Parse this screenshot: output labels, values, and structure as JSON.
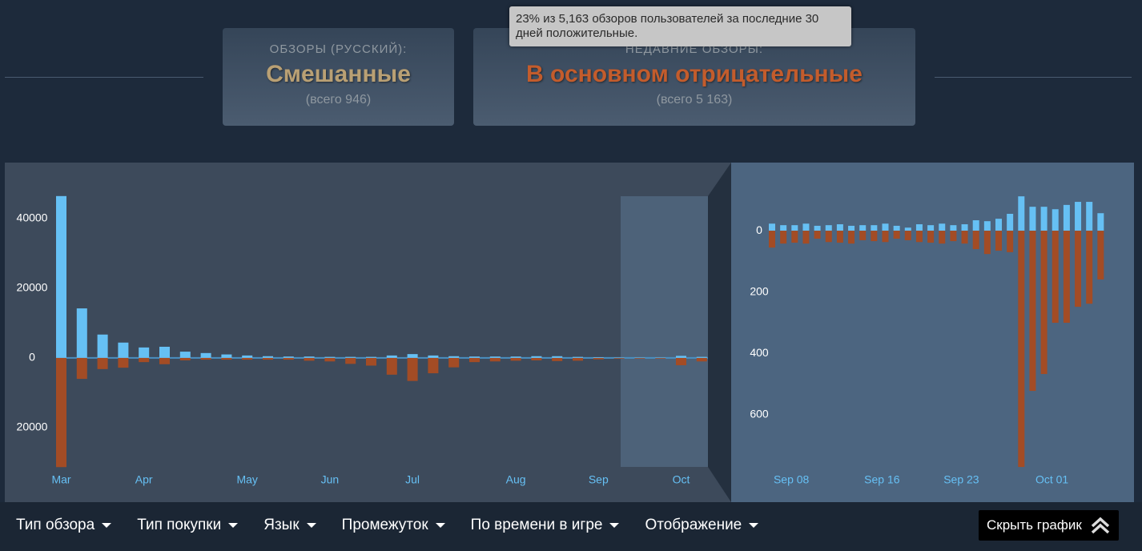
{
  "summary": {
    "overall": {
      "label": "ОБЗОРЫ (РУССКИЙ):",
      "rating": "Смешанные",
      "count": "(всего 946)"
    },
    "recent": {
      "label": "НЕДАВНИЕ ОБЗОРЫ:",
      "rating": "В основном отрицательные",
      "count": "(всего 5 163)"
    }
  },
  "tooltip": "23% из 5,163 обзоров пользователей за последние 30 дней положительные.",
  "chart_data": [
    {
      "type": "bar",
      "categories": [
        "Mar",
        null,
        null,
        null,
        "Apr",
        null,
        null,
        null,
        null,
        "May",
        null,
        null,
        null,
        "Jun",
        null,
        null,
        null,
        "Jul",
        null,
        null,
        null,
        null,
        "Aug",
        null,
        null,
        null,
        "Sep",
        null,
        null,
        null,
        "Oct",
        null
      ],
      "series": [
        {
          "color": "#66c0f4",
          "values": [
            46400,
            14200,
            6700,
            4400,
            3000,
            3200,
            1800,
            1400,
            1000,
            700,
            500,
            400,
            400,
            300,
            300,
            300,
            700,
            1100,
            700,
            500,
            400,
            400,
            400,
            500,
            500,
            300,
            200,
            100,
            100,
            100,
            600,
            300
          ]
        },
        {
          "color": "#a34c25",
          "values": [
            -31300,
            -6000,
            -3200,
            -2800,
            -1200,
            -1800,
            -700,
            -500,
            -500,
            -500,
            -500,
            -500,
            -800,
            -1000,
            -1700,
            -2200,
            -4800,
            -6600,
            -4400,
            -2700,
            -1200,
            -1000,
            -800,
            -700,
            -900,
            -800,
            -400,
            -200,
            -200,
            -200,
            -2100,
            -1000
          ]
        }
      ],
      "ylim": [
        -31700,
        56000
      ],
      "yticks": [
        40000,
        20000,
        0,
        {
          "value": -20000,
          "label": "20000"
        }
      ]
    },
    {
      "type": "bar",
      "categories": [
        null,
        "Sep 08",
        null,
        null,
        null,
        null,
        null,
        null,
        null,
        "Sep 16",
        null,
        null,
        null,
        null,
        null,
        null,
        "Sep 23",
        null,
        null,
        null,
        null,
        null,
        null,
        null,
        "Oct 01",
        null,
        null,
        null,
        null,
        null
      ],
      "series": [
        {
          "color": "#66c0f4",
          "values": [
            23,
            18,
            18,
            23,
            16,
            18,
            21,
            16,
            18,
            18,
            23,
            16,
            10,
            21,
            18,
            23,
            18,
            21,
            34,
            31,
            39,
            55,
            112,
            78,
            78,
            70,
            84,
            94,
            94,
            57
          ]
        },
        {
          "color": "#a34c25",
          "values": [
            -55,
            -42,
            -39,
            -42,
            -26,
            -37,
            -39,
            -42,
            -31,
            -34,
            -37,
            -26,
            -31,
            -37,
            -39,
            -42,
            -34,
            -42,
            -60,
            -76,
            -65,
            -70,
            -770,
            -522,
            -467,
            -300,
            -300,
            -248,
            -238,
            -159
          ]
        }
      ],
      "ylim": [
        -775,
        222
      ],
      "yticks": [
        0,
        {
          "value": -200,
          "label": "200"
        },
        {
          "value": -400,
          "label": "400"
        },
        {
          "value": -600,
          "label": "600"
        }
      ]
    }
  ],
  "filters": [
    "Тип обзора",
    "Тип покупки",
    "Язык",
    "Промежуток",
    "По времени в игре",
    "Отображение"
  ],
  "hide_chart_button": "Скрыть график"
}
